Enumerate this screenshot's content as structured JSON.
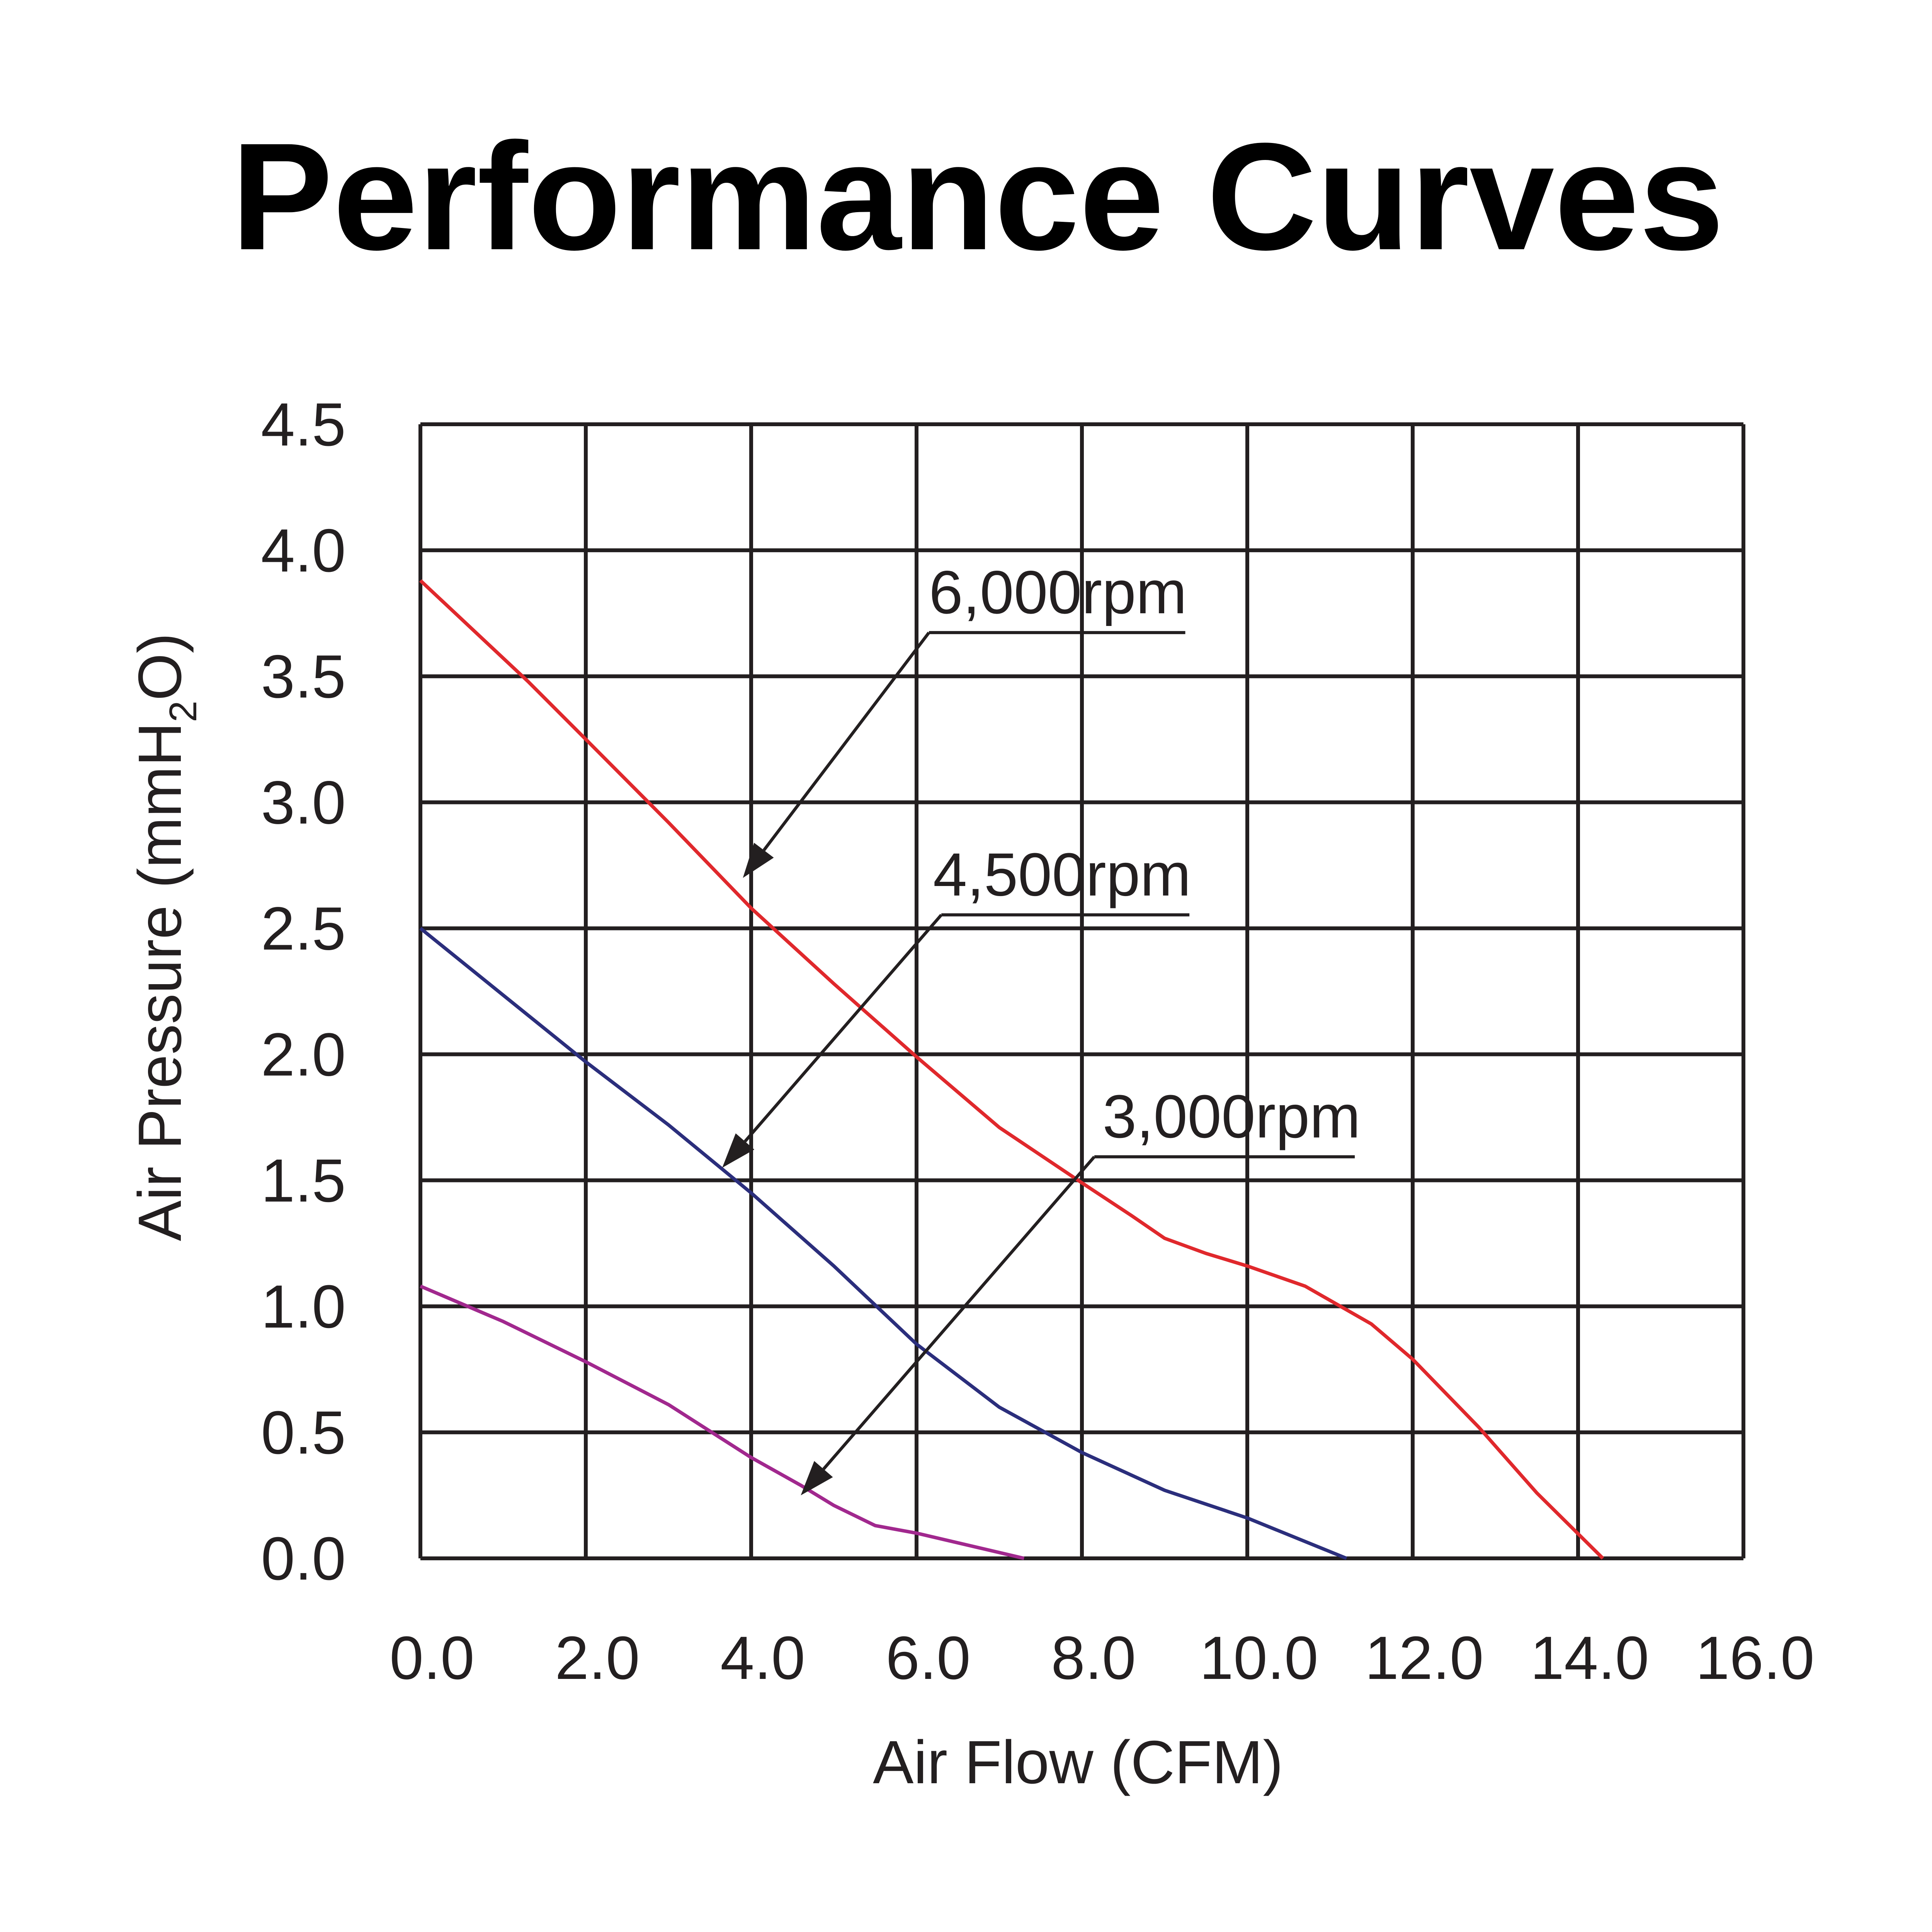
{
  "chart_data": {
    "type": "line",
    "title": "Performance Curves",
    "xlabel": "Air Flow (CFM)",
    "ylabel": {
      "prefix": "Air Pressure (mmH",
      "subscript": "2",
      "suffix": "O)"
    },
    "xlim": [
      0,
      16
    ],
    "ylim": [
      0,
      4.5
    ],
    "x_ticks": [
      0,
      2,
      4,
      6,
      8,
      10,
      12,
      14,
      16
    ],
    "x_tick_labels": [
      "0.0",
      "2.0",
      "4.0",
      "6.0",
      "8.0",
      "10.0",
      "12.0",
      "14.0",
      "16.0"
    ],
    "y_ticks": [
      0,
      0.5,
      1,
      1.5,
      2,
      2.5,
      3,
      3.5,
      4,
      4.5
    ],
    "y_tick_labels": [
      "0.0",
      "0.5",
      "1.0",
      "1.5",
      "2.0",
      "2.5",
      "3.0",
      "3.5",
      "4.0",
      "4.5"
    ],
    "grid": true,
    "series": [
      {
        "name": "6,000rpm",
        "color": "#e0282c",
        "points": [
          [
            0,
            3.88
          ],
          [
            1.3,
            3.48
          ],
          [
            2.0,
            3.25
          ],
          [
            3.0,
            2.92
          ],
          [
            4.0,
            2.58
          ],
          [
            5.0,
            2.28
          ],
          [
            6.0,
            1.99
          ],
          [
            7.0,
            1.71
          ],
          [
            8.0,
            1.49
          ],
          [
            8.6,
            1.36
          ],
          [
            9.0,
            1.27
          ],
          [
            9.5,
            1.21
          ],
          [
            10.0,
            1.16
          ],
          [
            10.7,
            1.08
          ],
          [
            11.5,
            0.93
          ],
          [
            12.0,
            0.79
          ],
          [
            12.8,
            0.52
          ],
          [
            13.5,
            0.26
          ],
          [
            14.3,
            0.0
          ]
        ]
      },
      {
        "name": "4,500rpm",
        "color": "#2b2e7c",
        "points": [
          [
            0,
            2.5
          ],
          [
            2.0,
            1.97
          ],
          [
            3.0,
            1.72
          ],
          [
            4.0,
            1.45
          ],
          [
            5.0,
            1.16
          ],
          [
            6.0,
            0.85
          ],
          [
            7.0,
            0.6
          ],
          [
            8.0,
            0.42
          ],
          [
            9.0,
            0.27
          ],
          [
            10.0,
            0.16
          ],
          [
            11.2,
            0.0
          ]
        ]
      },
      {
        "name": "3,000rpm",
        "color": "#a1288e",
        "points": [
          [
            0,
            1.08
          ],
          [
            1.0,
            0.94
          ],
          [
            2.0,
            0.78
          ],
          [
            3.0,
            0.61
          ],
          [
            4.0,
            0.4
          ],
          [
            4.6,
            0.29
          ],
          [
            5.0,
            0.21
          ],
          [
            5.5,
            0.13
          ],
          [
            6.0,
            0.1
          ],
          [
            7.3,
            0.0
          ]
        ]
      }
    ],
    "annotations": [
      {
        "text": "6,000rpm",
        "series": "6,000rpm",
        "label_at": [
          6.15,
          3.75
        ],
        "label_end_x": 9.25,
        "bend_x": 6.15,
        "arrow_to": [
          3.9,
          2.7
        ]
      },
      {
        "text": "4,500rpm",
        "series": "4,500rpm",
        "label_at": [
          6.2,
          2.63
        ],
        "label_end_x": 9.3,
        "bend_x": 6.3,
        "arrow_to": [
          3.65,
          1.55
        ]
      },
      {
        "text": "3,000rpm",
        "series": "3,000rpm",
        "label_at": [
          8.25,
          1.67
        ],
        "label_end_x": 11.3,
        "bend_x": 8.15,
        "arrow_to": [
          4.6,
          0.25
        ]
      }
    ]
  }
}
